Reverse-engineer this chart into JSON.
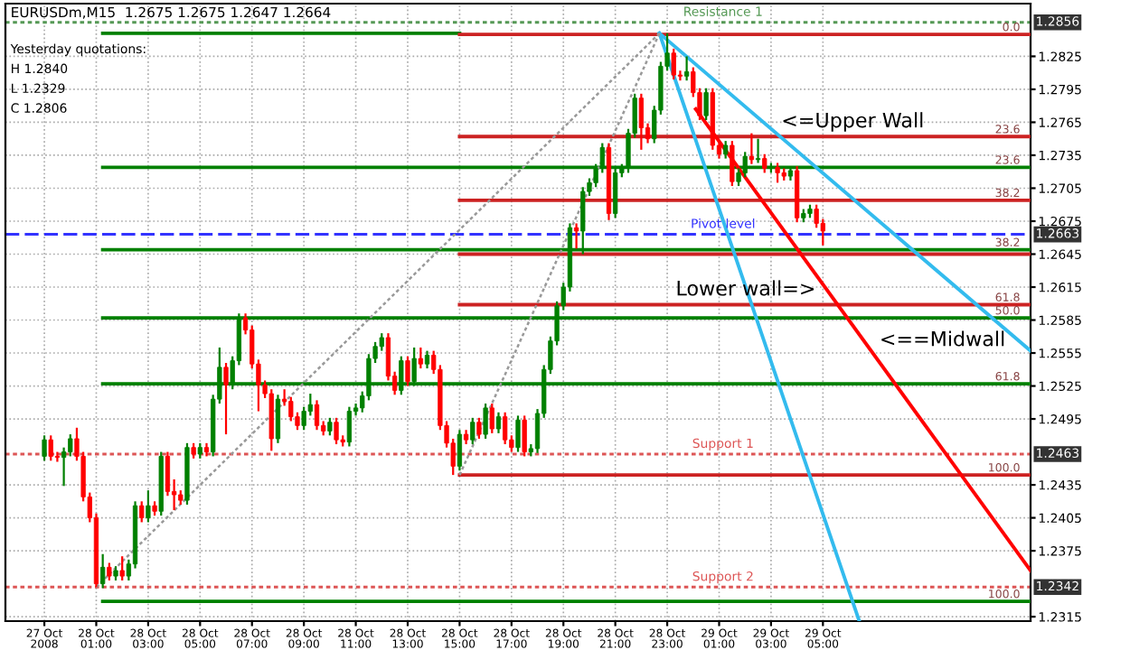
{
  "chart_data": {
    "type": "candlestick",
    "title": "EURUSDm,M15  1.2675 1.2675 1.2647 1.2664",
    "x": [
      "2008-10-27T23:00",
      "2008-10-27T23:15",
      "2008-10-27T23:30",
      "2008-10-27T23:45",
      "2008-10-28T00:00",
      "2008-10-28T00:15",
      "2008-10-28T00:30",
      "2008-10-28T00:45",
      "2008-10-28T01:00",
      "2008-10-28T01:15",
      "2008-10-28T01:30",
      "2008-10-28T01:45",
      "2008-10-28T02:00",
      "2008-10-28T02:15",
      "2008-10-28T02:30",
      "2008-10-28T02:45",
      "2008-10-28T03:00",
      "2008-10-28T03:15",
      "2008-10-28T03:30",
      "2008-10-28T03:45",
      "2008-10-28T04:00",
      "2008-10-28T04:15",
      "2008-10-28T04:30",
      "2008-10-28T04:45",
      "2008-10-28T05:00",
      "2008-10-28T05:15",
      "2008-10-28T05:30",
      "2008-10-28T05:45",
      "2008-10-28T06:00",
      "2008-10-28T06:15",
      "2008-10-28T06:30",
      "2008-10-28T06:45",
      "2008-10-28T07:00",
      "2008-10-28T07:15",
      "2008-10-28T07:30",
      "2008-10-28T07:45",
      "2008-10-28T08:00",
      "2008-10-28T08:15",
      "2008-10-28T08:30",
      "2008-10-28T08:45",
      "2008-10-28T09:00",
      "2008-10-28T09:15",
      "2008-10-28T09:30",
      "2008-10-28T09:45",
      "2008-10-28T10:00",
      "2008-10-28T10:15",
      "2008-10-28T10:30",
      "2008-10-28T10:45",
      "2008-10-28T11:00",
      "2008-10-28T11:15",
      "2008-10-28T11:30",
      "2008-10-28T11:45",
      "2008-10-28T12:00",
      "2008-10-28T12:15",
      "2008-10-28T12:30",
      "2008-10-28T12:45",
      "2008-10-28T13:00",
      "2008-10-28T13:15",
      "2008-10-28T13:30",
      "2008-10-28T13:45",
      "2008-10-28T14:00",
      "2008-10-28T14:15",
      "2008-10-28T14:30",
      "2008-10-28T14:45",
      "2008-10-28T15:00",
      "2008-10-28T15:15",
      "2008-10-28T15:30",
      "2008-10-28T15:45",
      "2008-10-28T16:00",
      "2008-10-28T16:15",
      "2008-10-28T16:30",
      "2008-10-28T16:45",
      "2008-10-28T17:00",
      "2008-10-28T17:15",
      "2008-10-28T17:30",
      "2008-10-28T17:45",
      "2008-10-28T18:00",
      "2008-10-28T18:15",
      "2008-10-28T18:30",
      "2008-10-28T18:45",
      "2008-10-28T19:00",
      "2008-10-28T19:15",
      "2008-10-28T19:30",
      "2008-10-28T19:45",
      "2008-10-28T20:00",
      "2008-10-28T20:15",
      "2008-10-28T20:30",
      "2008-10-28T20:45",
      "2008-10-28T21:00",
      "2008-10-28T21:15",
      "2008-10-28T21:30",
      "2008-10-28T21:45",
      "2008-10-28T22:00",
      "2008-10-28T22:15",
      "2008-10-28T22:30",
      "2008-10-28T22:45",
      "2008-10-28T23:00",
      "2008-10-28T23:15",
      "2008-10-28T23:30",
      "2008-10-28T23:45",
      "2008-10-29T00:00",
      "2008-10-29T00:15",
      "2008-10-29T00:30",
      "2008-10-29T00:45",
      "2008-10-29T01:00",
      "2008-10-29T01:15",
      "2008-10-29T01:30",
      "2008-10-29T01:45",
      "2008-10-29T02:00",
      "2008-10-29T02:15",
      "2008-10-29T02:30",
      "2008-10-29T02:45",
      "2008-10-29T03:00",
      "2008-10-29T03:15",
      "2008-10-29T03:30",
      "2008-10-29T03:45",
      "2008-10-29T04:00",
      "2008-10-29T04:15",
      "2008-10-29T04:30",
      "2008-10-29T04:45",
      "2008-10-29T05:00"
    ],
    "ohlc": [
      [
        1.2461,
        1.248,
        1.2457,
        1.2476
      ],
      [
        1.2476,
        1.248,
        1.2457,
        1.2461
      ],
      [
        1.2461,
        1.2465,
        1.2456,
        1.246
      ],
      [
        1.246,
        1.2469,
        1.2434,
        1.2465
      ],
      [
        1.2465,
        1.2481,
        1.2461,
        1.2477
      ],
      [
        1.2477,
        1.2487,
        1.2457,
        1.2461
      ],
      [
        1.2461,
        1.2465,
        1.242,
        1.2424
      ],
      [
        1.2424,
        1.2428,
        1.2401,
        1.2405
      ],
      [
        1.2405,
        1.2409,
        1.2342,
        1.2345
      ],
      [
        1.2345,
        1.2372,
        1.2341,
        1.236
      ],
      [
        1.236,
        1.2364,
        1.2348,
        1.2352
      ],
      [
        1.2352,
        1.2361,
        1.2348,
        1.2357
      ],
      [
        1.2357,
        1.237,
        1.2348,
        1.2352
      ],
      [
        1.2352,
        1.2367,
        1.2348,
        1.2363
      ],
      [
        1.2363,
        1.242,
        1.2359,
        1.2416
      ],
      [
        1.2416,
        1.242,
        1.2401,
        1.2405
      ],
      [
        1.2405,
        1.243,
        1.2401,
        1.2416
      ],
      [
        1.2416,
        1.242,
        1.2407,
        1.2411
      ],
      [
        1.2411,
        1.2465,
        1.2407,
        1.2461
      ],
      [
        1.2461,
        1.2465,
        1.2425,
        1.2429
      ],
      [
        1.2429,
        1.244,
        1.2412,
        1.2426
      ],
      [
        1.2426,
        1.243,
        1.2417,
        1.2421
      ],
      [
        1.2421,
        1.2473,
        1.2417,
        1.2469
      ],
      [
        1.2469,
        1.2473,
        1.2459,
        1.2463
      ],
      [
        1.2463,
        1.2473,
        1.2459,
        1.2469
      ],
      [
        1.2469,
        1.2473,
        1.2461,
        1.2465
      ],
      [
        1.2465,
        1.2517,
        1.2461,
        1.2513
      ],
      [
        1.2513,
        1.256,
        1.2509,
        1.2542
      ],
      [
        1.2542,
        1.2546,
        1.2481,
        1.2526
      ],
      [
        1.2526,
        1.2552,
        1.2522,
        1.2548
      ],
      [
        1.2548,
        1.2591,
        1.2544,
        1.2587
      ],
      [
        1.2587,
        1.2591,
        1.2572,
        1.2576
      ],
      [
        1.2576,
        1.258,
        1.2541,
        1.2545
      ],
      [
        1.2545,
        1.2549,
        1.2502,
        1.2526
      ],
      [
        1.2526,
        1.253,
        1.2514,
        1.2518
      ],
      [
        1.2518,
        1.2522,
        1.2466,
        1.2477
      ],
      [
        1.2477,
        1.2517,
        1.2473,
        1.2513
      ],
      [
        1.2513,
        1.2522,
        1.2507,
        1.2511
      ],
      [
        1.2511,
        1.2515,
        1.2493,
        1.2497
      ],
      [
        1.2497,
        1.2501,
        1.2485,
        1.2489
      ],
      [
        1.2489,
        1.2506,
        1.2485,
        1.2502
      ],
      [
        1.2502,
        1.2518,
        1.2498,
        1.2508
      ],
      [
        1.2508,
        1.2512,
        1.2485,
        1.2489
      ],
      [
        1.2489,
        1.2493,
        1.248,
        1.2484
      ],
      [
        1.2484,
        1.2496,
        1.248,
        1.2492
      ],
      [
        1.2492,
        1.2496,
        1.2472,
        1.2476
      ],
      [
        1.2476,
        1.248,
        1.247,
        1.2474
      ],
      [
        1.2474,
        1.2506,
        1.247,
        1.2502
      ],
      [
        1.2502,
        1.2509,
        1.2498,
        1.2505
      ],
      [
        1.2505,
        1.252,
        1.2501,
        1.2516
      ],
      [
        1.2516,
        1.2554,
        1.2512,
        1.255
      ],
      [
        1.255,
        1.2565,
        1.2546,
        1.2561
      ],
      [
        1.2561,
        1.2573,
        1.2557,
        1.2569
      ],
      [
        1.2569,
        1.2573,
        1.253,
        1.2534
      ],
      [
        1.2534,
        1.2538,
        1.2517,
        1.2521
      ],
      [
        1.2521,
        1.2552,
        1.2517,
        1.2548
      ],
      [
        1.2548,
        1.2552,
        1.2525,
        1.2529
      ],
      [
        1.2529,
        1.256,
        1.2525,
        1.255
      ],
      [
        1.255,
        1.256,
        1.2541,
        1.2545
      ],
      [
        1.2545,
        1.2557,
        1.2541,
        1.2553
      ],
      [
        1.2553,
        1.2557,
        1.2536,
        1.254
      ],
      [
        1.254,
        1.2544,
        1.2485,
        1.2489
      ],
      [
        1.2489,
        1.2493,
        1.2469,
        1.2473
      ],
      [
        1.2473,
        1.2477,
        1.2444,
        1.2452
      ],
      [
        1.2452,
        1.2485,
        1.2448,
        1.2481
      ],
      [
        1.2481,
        1.2485,
        1.2472,
        1.2476
      ],
      [
        1.2476,
        1.2496,
        1.2472,
        1.2492
      ],
      [
        1.2492,
        1.2496,
        1.2477,
        1.2481
      ],
      [
        1.2481,
        1.2509,
        1.2477,
        1.2505
      ],
      [
        1.2505,
        1.2509,
        1.2482,
        1.2486
      ],
      [
        1.2486,
        1.2501,
        1.2482,
        1.2497
      ],
      [
        1.2497,
        1.2501,
        1.2472,
        1.2476
      ],
      [
        1.2476,
        1.248,
        1.2465,
        1.2469
      ],
      [
        1.2469,
        1.2498,
        1.2465,
        1.2494
      ],
      [
        1.2494,
        1.2498,
        1.2461,
        1.2465
      ],
      [
        1.2465,
        1.2472,
        1.2461,
        1.2468
      ],
      [
        1.2468,
        1.2504,
        1.2464,
        1.25
      ],
      [
        1.25,
        1.2544,
        1.2496,
        1.254
      ],
      [
        1.254,
        1.257,
        1.2536,
        1.2566
      ],
      [
        1.2566,
        1.2602,
        1.2562,
        1.2598
      ],
      [
        1.2598,
        1.2619,
        1.2594,
        1.2615
      ],
      [
        1.2615,
        1.2673,
        1.2611,
        1.2669
      ],
      [
        1.2669,
        1.2673,
        1.265,
        1.2666
      ],
      [
        1.2666,
        1.2706,
        1.2645,
        1.2702
      ],
      [
        1.2702,
        1.2714,
        1.2698,
        1.271
      ],
      [
        1.271,
        1.2727,
        1.2706,
        1.2723
      ],
      [
        1.2723,
        1.2746,
        1.2719,
        1.2742
      ],
      [
        1.2742,
        1.2746,
        1.2676,
        1.2682
      ],
      [
        1.2682,
        1.2723,
        1.2678,
        1.2719
      ],
      [
        1.2719,
        1.2727,
        1.2715,
        1.2723
      ],
      [
        1.2723,
        1.2759,
        1.2719,
        1.2755
      ],
      [
        1.2755,
        1.2791,
        1.2751,
        1.2787
      ],
      [
        1.2787,
        1.2791,
        1.274,
        1.276
      ],
      [
        1.276,
        1.2764,
        1.2746,
        1.275
      ],
      [
        1.275,
        1.278,
        1.2746,
        1.2776
      ],
      [
        1.2776,
        1.282,
        1.2772,
        1.2816
      ],
      [
        1.2816,
        1.2846,
        1.2812,
        1.2828
      ],
      [
        1.2828,
        1.2832,
        1.2804,
        1.2808
      ],
      [
        1.2808,
        1.2812,
        1.2803,
        1.2807
      ],
      [
        1.2807,
        1.2825,
        1.2803,
        1.2811
      ],
      [
        1.2811,
        1.2815,
        1.2788,
        1.2792
      ],
      [
        1.2792,
        1.2796,
        1.2767,
        1.2771
      ],
      [
        1.2771,
        1.2796,
        1.2767,
        1.2792
      ],
      [
        1.2792,
        1.2796,
        1.274,
        1.2744
      ],
      [
        1.2744,
        1.2748,
        1.2732,
        1.2736
      ],
      [
        1.2736,
        1.2748,
        1.2732,
        1.2744
      ],
      [
        1.2744,
        1.2748,
        1.2707,
        1.2711
      ],
      [
        1.2711,
        1.2723,
        1.2707,
        1.2719
      ],
      [
        1.2719,
        1.2738,
        1.2715,
        1.2734
      ],
      [
        1.2734,
        1.2755,
        1.2727,
        1.2731
      ],
      [
        1.2731,
        1.275,
        1.2728,
        1.2732
      ],
      [
        1.2732,
        1.2736,
        1.2719,
        1.2723
      ],
      [
        1.2723,
        1.2728,
        1.2719,
        1.2724
      ],
      [
        1.2724,
        1.2728,
        1.271,
        1.2719
      ],
      [
        1.2719,
        1.2723,
        1.2712,
        1.2716
      ],
      [
        1.2716,
        1.2725,
        1.2712,
        1.2721
      ],
      [
        1.2721,
        1.2725,
        1.2674,
        1.2678
      ],
      [
        1.2678,
        1.2686,
        1.2674,
        1.2682
      ],
      [
        1.2682,
        1.269,
        1.2678,
        1.2686
      ],
      [
        1.2686,
        1.269,
        1.2669,
        1.2673
      ],
      [
        1.2673,
        1.2677,
        1.2653,
        1.2666
      ]
    ],
    "series": [
      {
        "type": "line",
        "color": "#008000",
        "x": [
          "2008-10-28T01:15",
          "2008-10-28T15:00"
        ],
        "values": [
          1.2846,
          1.2846
        ],
        "line_style": "solid"
      },
      {
        "type": "line",
        "color": "#008000",
        "x": [
          "2008-10-28T01:15",
          "2008-10-29T13:00"
        ],
        "values": [
          1.2724,
          1.2724
        ],
        "line_style": "solid"
      },
      {
        "type": "line",
        "color": "#008000",
        "x": [
          "2008-10-28T01:15",
          "2008-10-29T13:00"
        ],
        "values": [
          1.2649,
          1.2649
        ],
        "line_style": "solid"
      },
      {
        "type": "line",
        "color": "#008000",
        "x": [
          "2008-10-28T01:15",
          "2008-10-29T13:00"
        ],
        "values": [
          1.2587,
          1.2587
        ],
        "line_style": "solid"
      },
      {
        "type": "line",
        "color": "#008000",
        "x": [
          "2008-10-28T01:15",
          "2008-10-29T13:00"
        ],
        "values": [
          1.2527,
          1.2527
        ],
        "line_style": "solid"
      },
      {
        "type": "line",
        "color": "#008000",
        "x": [
          "2008-10-28T01:15",
          "2008-10-29T13:00"
        ],
        "values": [
          1.2329,
          1.2329
        ],
        "line_style": "solid"
      },
      {
        "type": "line",
        "color": "#cc2222",
        "x": [
          "2008-10-28T15:00",
          "2008-10-29T13:00"
        ],
        "values": [
          1.2845,
          1.2845
        ],
        "line_style": "solid"
      },
      {
        "type": "line",
        "color": "#cc2222",
        "x": [
          "2008-10-28T15:00",
          "2008-10-29T13:00"
        ],
        "values": [
          1.2752,
          1.2752
        ],
        "line_style": "solid"
      },
      {
        "type": "line",
        "color": "#cc2222",
        "x": [
          "2008-10-28T15:00",
          "2008-10-29T13:00"
        ],
        "values": [
          1.2694,
          1.2694
        ],
        "line_style": "solid"
      },
      {
        "type": "line",
        "color": "#cc2222",
        "x": [
          "2008-10-28T15:00",
          "2008-10-29T13:00"
        ],
        "values": [
          1.2645,
          1.2645
        ],
        "line_style": "solid"
      },
      {
        "type": "line",
        "color": "#cc2222",
        "x": [
          "2008-10-28T15:00",
          "2008-10-29T13:00"
        ],
        "values": [
          1.2599,
          1.2599
        ],
        "line_style": "solid"
      },
      {
        "type": "line",
        "color": "#cc2222",
        "x": [
          "2008-10-28T15:00",
          "2008-10-29T13:00"
        ],
        "values": [
          1.2444,
          1.2444
        ],
        "line_style": "solid"
      },
      {
        "type": "line",
        "color": "#33bbee",
        "x": [
          "2008-10-28T22:42",
          "2008-10-29T13:00"
        ],
        "values": [
          1.2846,
          1.2557
        ],
        "line_style": "solid"
      },
      {
        "type": "line",
        "color": "#33bbee",
        "x": [
          "2008-10-28T22:42",
          "2008-10-29T06:24"
        ],
        "values": [
          1.2846,
          1.2311
        ],
        "line_style": "solid"
      },
      {
        "type": "line",
        "color": "#ff0000",
        "x": [
          "2008-10-29T00:06",
          "2008-10-29T13:00"
        ],
        "values": [
          1.2777,
          1.2357
        ],
        "line_style": "solid"
      },
      {
        "type": "line",
        "color": "#999999",
        "x": [
          "2008-10-28T01:00",
          "2008-10-28T22:42"
        ],
        "values": [
          1.2342,
          1.2846
        ],
        "line_style": "dotted"
      },
      {
        "type": "line",
        "color": "#999999",
        "x": [
          "2008-10-28T15:00",
          "2008-10-28T22:42"
        ],
        "values": [
          1.2444,
          1.2846
        ],
        "line_style": "dotted"
      }
    ],
    "ref_lines": [
      {
        "axis": "y",
        "value": 1.2663,
        "label": "Pivot level",
        "color": "#3333ff",
        "line_style": "dashed"
      },
      {
        "axis": "y",
        "value": 1.2463,
        "label": "Support 1",
        "color": "#dd5555",
        "line_style": "dotted"
      },
      {
        "axis": "y",
        "value": 1.2342,
        "label": "Support 2",
        "color": "#dd5555",
        "line_style": "dotted"
      },
      {
        "axis": "y",
        "value": 1.2856,
        "label": "Resistance 1",
        "color": "#559955",
        "line_style": "dotted"
      }
    ],
    "annotations": [
      "Yesterday quotations:",
      "H 1.2840",
      "L 1.2329",
      "C 1.2806",
      {
        "text": "0.0",
        "x": "2008-10-29T12:36",
        "y": 1.2845
      },
      {
        "text": "23.6",
        "x": "2008-10-29T12:36",
        "y": 1.2752
      },
      {
        "text": "23.6",
        "x": "2008-10-29T12:36",
        "y": 1.2724
      },
      {
        "text": "38.2",
        "x": "2008-10-29T12:36",
        "y": 1.2694
      },
      {
        "text": "38.2",
        "x": "2008-10-29T12:36",
        "y": 1.2649
      },
      {
        "text": "61.8",
        "x": "2008-10-29T12:36",
        "y": 1.2599
      },
      {
        "text": "50.0",
        "x": "2008-10-29T12:36",
        "y": 1.2587
      },
      {
        "text": "61.8",
        "x": "2008-10-29T12:36",
        "y": 1.2527
      },
      {
        "text": "100.0",
        "x": "2008-10-29T12:36",
        "y": 1.2444
      },
      {
        "text": "100.0",
        "x": "2008-10-29T12:36",
        "y": 1.2329
      },
      {
        "text": "<=Upper Wall",
        "x": "2008-10-29T03:12",
        "y": 1.2752
      },
      {
        "text": "Lower wall=>",
        "x": "2008-10-28T23:08",
        "y": 1.2599
      },
      {
        "text": "<==Midwall",
        "x": "2008-10-29T06:59",
        "y": 1.2553
      },
      {
        "text": "1.2856",
        "x": "2008-10-29T13:00",
        "y": 1.2856
      },
      {
        "text": "1.2663",
        "x": "2008-10-29T13:00",
        "y": 1.2663
      },
      {
        "text": "1.2463",
        "x": "2008-10-29T13:00",
        "y": 1.2463
      },
      {
        "text": "1.2342",
        "x": "2008-10-29T13:00",
        "y": 1.2342
      }
    ],
    "xlim": [
      "2008-10-27T21:30",
      "2008-10-29T13:00"
    ],
    "ylim": [
      1.2311,
      1.2873
    ],
    "xticks": [
      {
        "value": "2008-10-27T23:00",
        "label": "27 Oct 2008"
      },
      {
        "value": "2008-10-28T01:00",
        "label": "28 Oct 01:00"
      },
      {
        "value": "2008-10-28T03:00",
        "label": "28 Oct 03:00"
      },
      {
        "value": "2008-10-28T05:00",
        "label": "28 Oct 05:00"
      },
      {
        "value": "2008-10-28T07:00",
        "label": "28 Oct 07:00"
      },
      {
        "value": "2008-10-28T09:00",
        "label": "28 Oct 09:00"
      },
      {
        "value": "2008-10-28T11:00",
        "label": "28 Oct 11:00"
      },
      {
        "value": "2008-10-28T13:00",
        "label": "28 Oct 13:00"
      },
      {
        "value": "2008-10-28T15:00",
        "label": "28 Oct 15:00"
      },
      {
        "value": "2008-10-28T17:00",
        "label": "28 Oct 17:00"
      },
      {
        "value": "2008-10-28T19:00",
        "label": "28 Oct 19:00"
      },
      {
        "value": "2008-10-28T21:00",
        "label": "28 Oct 21:00"
      },
      {
        "value": "2008-10-28T23:00",
        "label": "28 Oct 23:00"
      },
      {
        "value": "2008-10-29T01:00",
        "label": "29 Oct 01:00"
      },
      {
        "value": "2008-10-29T03:00",
        "label": "29 Oct 03:00"
      },
      {
        "value": "2008-10-29T05:00",
        "label": "29 Oct 05:00"
      }
    ],
    "yticks": [
      1.2315,
      1.2375,
      1.2405,
      1.2435,
      1.2495,
      1.2525,
      1.2555,
      1.2585,
      1.2615,
      1.2645,
      1.2675,
      1.2705,
      1.2735,
      1.2765,
      1.2795,
      1.2825
    ],
    "grid": true
  }
}
